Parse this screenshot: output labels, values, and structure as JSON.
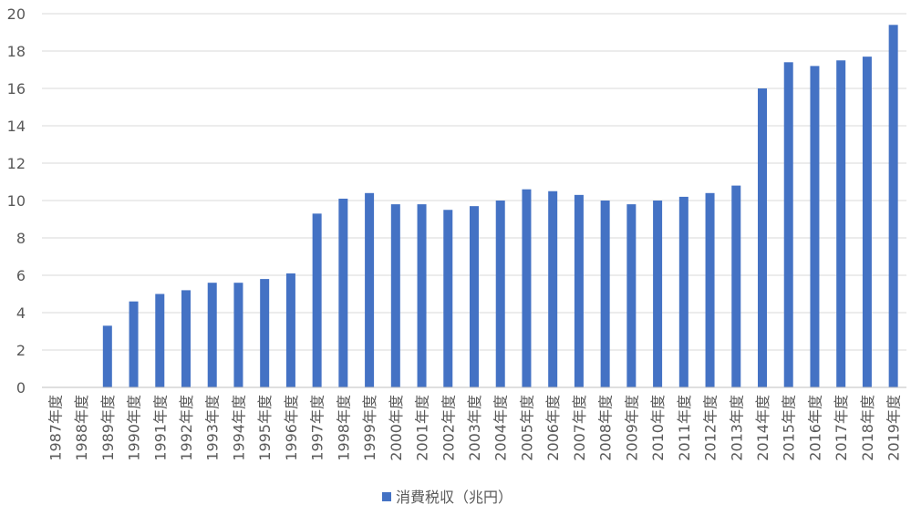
{
  "chart_data": {
    "type": "bar",
    "categories": [
      "1987年度",
      "1988年度",
      "1989年度",
      "1990年度",
      "1991年度",
      "1992年度",
      "1993年度",
      "1994年度",
      "1995年度",
      "1996年度",
      "1997年度",
      "1998年度",
      "1999年度",
      "2000年度",
      "2001年度",
      "2002年度",
      "2003年度",
      "2004年度",
      "2005年度",
      "2006年度",
      "2007年度",
      "2008年度",
      "2009年度",
      "2010年度",
      "2011年度",
      "2012年度",
      "2013年度",
      "2014年度",
      "2015年度",
      "2016年度",
      "2017年度",
      "2018年度",
      "2019年度"
    ],
    "series": [
      {
        "name": "消費税収（兆円）",
        "values": [
          0,
          0,
          3.3,
          4.6,
          5.0,
          5.2,
          5.6,
          5.6,
          5.8,
          6.1,
          9.3,
          10.1,
          10.4,
          9.8,
          9.8,
          9.5,
          9.7,
          10.0,
          10.6,
          10.5,
          10.3,
          10.0,
          9.8,
          10.0,
          10.2,
          10.4,
          10.8,
          16.0,
          17.4,
          17.2,
          17.5,
          17.7,
          19.4
        ],
        "color": "#4472c4"
      }
    ],
    "yticks": [
      0,
      2,
      4,
      6,
      8,
      10,
      12,
      14,
      16,
      18,
      20
    ],
    "ylim": [
      0,
      20
    ],
    "grid": true,
    "legend_position": "bottom",
    "title": "",
    "xlabel": "",
    "ylabel": ""
  }
}
